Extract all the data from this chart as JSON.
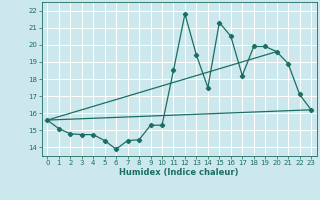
{
  "title": "",
  "xlabel": "Humidex (Indice chaleur)",
  "bg_color": "#cde8ec",
  "grid_color": "#b0d4d8",
  "line_color": "#1a6e64",
  "xlim": [
    -0.5,
    23.5
  ],
  "ylim": [
    13.5,
    22.5
  ],
  "xticks": [
    0,
    1,
    2,
    3,
    4,
    5,
    6,
    7,
    8,
    9,
    10,
    11,
    12,
    13,
    14,
    15,
    16,
    17,
    18,
    19,
    20,
    21,
    22,
    23
  ],
  "yticks": [
    14,
    15,
    16,
    17,
    18,
    19,
    20,
    21,
    22
  ],
  "main_x": [
    0,
    1,
    2,
    3,
    4,
    5,
    6,
    7,
    8,
    9,
    10,
    11,
    12,
    13,
    14,
    15,
    16,
    17,
    18,
    19,
    20,
    21,
    22,
    23
  ],
  "main_y": [
    15.6,
    15.1,
    14.8,
    14.75,
    14.75,
    14.4,
    13.9,
    14.4,
    14.45,
    15.3,
    15.3,
    18.5,
    21.8,
    19.4,
    17.5,
    21.3,
    20.5,
    18.2,
    19.9,
    19.9,
    19.6,
    18.9,
    17.1,
    16.2
  ],
  "line1_x": [
    0,
    23
  ],
  "line1_y": [
    15.6,
    16.2
  ],
  "line2_x": [
    0,
    20
  ],
  "line2_y": [
    15.6,
    19.6
  ],
  "marker_size": 2.2,
  "linewidth": 0.9,
  "tick_fontsize": 5.0,
  "xlabel_fontsize": 6.0
}
